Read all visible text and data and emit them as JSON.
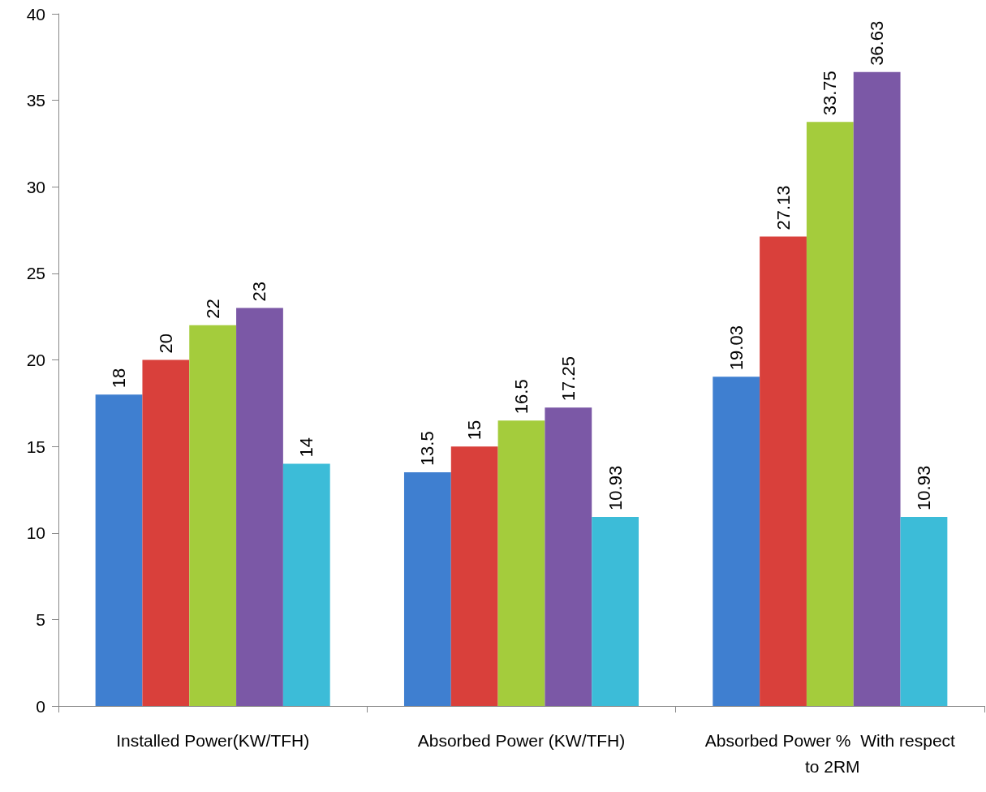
{
  "chart_data": {
    "type": "bar",
    "categories": [
      "Installed Power(KW/TFH)",
      "Absorbed Power (KW/TFH)",
      "Absorbed Power %  With respect to 2RM"
    ],
    "series": [
      {
        "color": "#3f7fd0",
        "values": [
          18,
          13.5,
          19.03
        ]
      },
      {
        "color": "#d9403b",
        "values": [
          20,
          15,
          27.13
        ]
      },
      {
        "color": "#a4cc3c",
        "values": [
          22,
          16.5,
          33.75
        ]
      },
      {
        "color": "#7b58a6",
        "values": [
          23,
          17.25,
          36.63
        ]
      },
      {
        "color": "#3cbcd8",
        "values": [
          14,
          10.93,
          10.93
        ]
      }
    ],
    "ylim": [
      0,
      40
    ],
    "yticks": [
      0,
      5,
      10,
      15,
      20,
      25,
      30,
      35,
      40
    ],
    "data_labels": true,
    "grid": false
  }
}
